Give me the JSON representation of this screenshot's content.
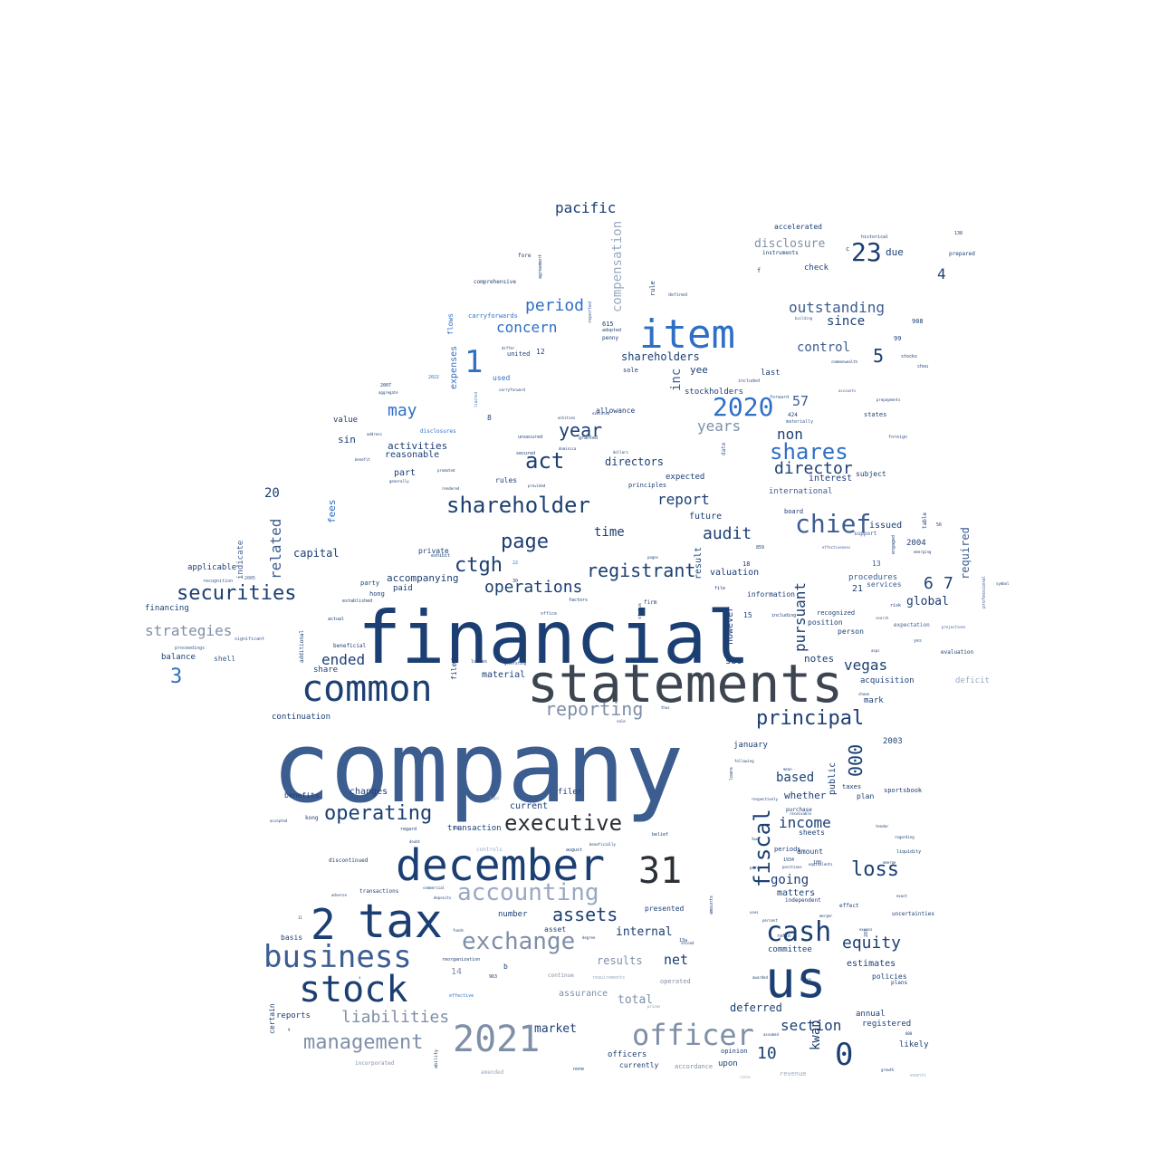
{
  "palette": {
    "dark_navy": "#1c3f73",
    "slate": "#3d4550",
    "steel": "#3c5d90",
    "blue": "#2f6fc6",
    "light_steel": "#7f8fa8",
    "pale": "#9aa8c2",
    "charcoal": "#2b2f36"
  },
  "words": [
    "company",
    "financial",
    "statements",
    "us",
    "item",
    "december",
    "tax",
    "stock",
    "common",
    "business",
    "2021",
    "officer",
    "31",
    "2",
    "shareholder",
    "chief",
    "cash",
    "exchange",
    "accounting",
    "shares",
    "executive",
    "securities",
    "management",
    "2020",
    "principal",
    "operating",
    "act",
    "1",
    "23",
    "liabilities",
    "0",
    "assets",
    "reporting",
    "fiscal",
    "loss",
    "page",
    "registrant",
    "director",
    "operations",
    "year",
    "ctgh",
    "equity",
    "period",
    "concern",
    "audit",
    "compensation",
    "outstanding",
    "may",
    "related",
    "report",
    "income",
    "section",
    "pacific",
    "strategies",
    "vegas",
    "000",
    "ended",
    "3",
    "5",
    "6",
    "7",
    "10",
    "pursuant",
    "control",
    "since",
    "non",
    "years",
    "kwan",
    "disclosure",
    "time",
    "based",
    "going",
    "internal",
    "net",
    "total",
    "market",
    "deferred",
    "global",
    "inc",
    "shareholders",
    "required",
    "4",
    "57",
    "activities",
    "directors",
    "reasonable",
    "part",
    "capital",
    "fees",
    "20",
    "valuation",
    "future",
    "result",
    "notes",
    "whether",
    "public",
    "matters",
    "estimates",
    "annual",
    "registered",
    "committee",
    "results",
    "assurance",
    "officers",
    "upon",
    "likely",
    "accompanying",
    "paid",
    "continuation",
    "changes",
    "current",
    "filer",
    "transaction",
    "number",
    "presented",
    "asset",
    "due",
    "check",
    "accelerated",
    "yee",
    "stockholders",
    "last",
    "expenses",
    "flows",
    "carryforwards",
    "comprehensive",
    "united",
    "used",
    "value",
    "sin",
    "allowance",
    "expected",
    "rules",
    "principles",
    "international",
    "issued",
    "interest",
    "subject",
    "board",
    "support",
    "procedures",
    "services",
    "21",
    "13",
    "2004",
    "mark",
    "acquisition",
    "sec",
    "however",
    "information",
    "recognized",
    "position",
    "person",
    "2003",
    "january",
    "plan",
    "taxes",
    "sportsbook",
    "purchase",
    "amount",
    "sheets",
    "periods",
    "independent",
    "effect",
    "policies",
    "plans",
    "uncertainties",
    "deficit",
    "financing",
    "applicable",
    "balance",
    "shell",
    "indicate",
    "additional",
    "beneficial",
    "material",
    "share",
    "kong",
    "regard",
    "benefits",
    "discontinued",
    "transactions",
    "basis",
    "reports",
    "certain",
    "b",
    "14",
    "effective",
    "continue",
    "requirements",
    "operated",
    "amended",
    "incorporated",
    "currently",
    "accordance",
    "none",
    "revenue",
    "opinion",
    "filed",
    "generating",
    "losses",
    "date",
    "rule",
    "defined",
    "agreement",
    "reported",
    "adopted",
    "penny",
    "sole",
    "firm",
    "status",
    "file",
    "15",
    "18",
    "859",
    "accepted",
    "actual",
    "established",
    "significant",
    "proceedings",
    "recognition",
    "2005",
    "hong",
    "party",
    "private",
    "exhibit",
    "22",
    "30",
    "factors",
    "office",
    "equivalents",
    "100",
    "1934",
    "positions",
    "pink",
    "including",
    "expectation",
    "evaluation",
    "yes",
    "projections",
    "professional",
    "deposits",
    "commercial",
    "august",
    "beneficially",
    "belief",
    "second",
    "ability",
    "entities",
    "dollars",
    "dominica",
    "secured",
    "unsecured",
    "2022",
    "2007",
    "aggregate",
    "disclosures",
    "limited",
    "carryforward",
    "differ",
    "instruments",
    "prepared",
    "historical",
    "138",
    "908",
    "99",
    "stocks",
    "chou",
    "commonwealth",
    "included",
    "forward",
    "materially",
    "424",
    "states",
    "foreign",
    "prepayments",
    "accounts",
    "building",
    "615",
    "12",
    "8",
    "c",
    "f",
    "fore",
    "56",
    "table",
    "engaged",
    "emerging",
    "effectiveness",
    "risk",
    "search",
    "symbol",
    "283",
    "808",
    "aspc",
    "shown",
    "growth",
    "events",
    "rates",
    "legal",
    "summary",
    "controls",
    "degree",
    "funds",
    "x",
    "reorganization",
    "prices",
    "awarded",
    "assumed",
    "excess",
    "13a",
    "963",
    "500",
    "9",
    "11",
    "adverse",
    "doubt",
    "pages",
    "promoted",
    "provided",
    "executed",
    "granted",
    "address",
    "benefit",
    "rendered",
    "generally",
    "exact",
    "liquidity",
    "emerge",
    "tender",
    "regarding",
    "percent",
    "ratio",
    "uses",
    "merger",
    "bases",
    "amounts",
    "loans",
    "mean",
    "two",
    "receivable",
    "respectively",
    "following",
    "thus",
    "sale",
    "payments",
    "sold",
    "according",
    "component",
    "year2"
  ]
}
